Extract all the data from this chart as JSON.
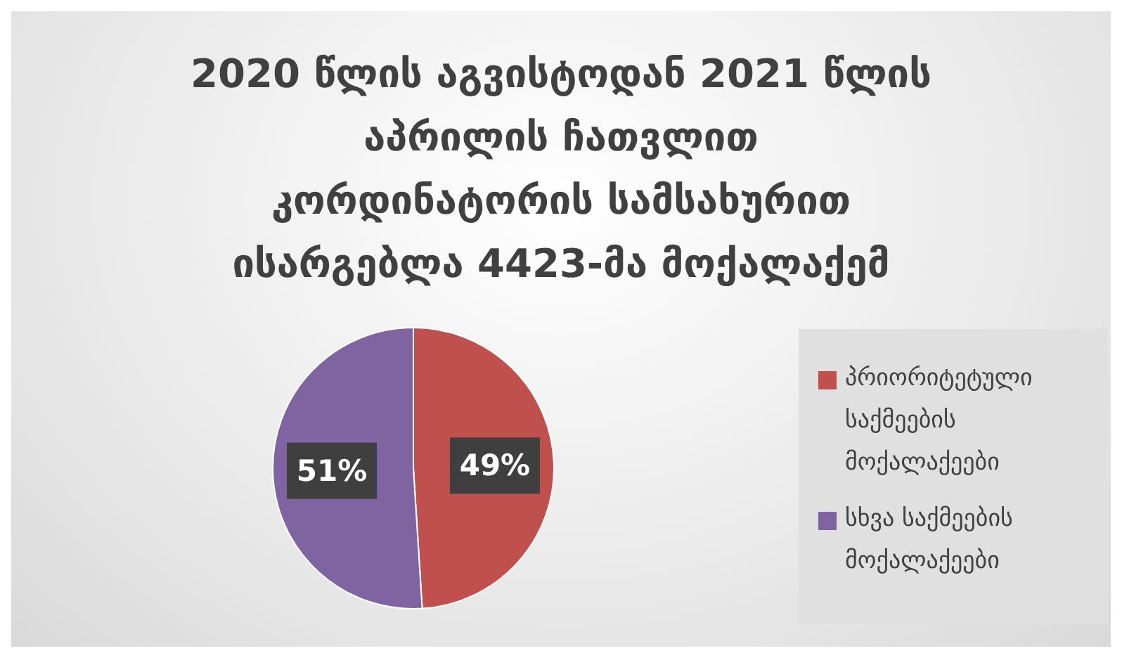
{
  "chart_data": {
    "type": "pie",
    "title": "2020 წლის აგვისტოდან 2021 წლის\nაპრილის ჩათვლით\nკორდინატორის სამსახურით\nისარგებლა 4423-მა მოქალაქემ",
    "categories": [
      "პრიორიტეტული საქმეების მოქალაქეები",
      "სხვა საქმეების მოქალაქეები"
    ],
    "values": [
      49,
      51
    ],
    "colors": [
      "#c0504d",
      "#8064a2"
    ],
    "value_labels": [
      "49%",
      "51%"
    ],
    "legend": "right"
  }
}
